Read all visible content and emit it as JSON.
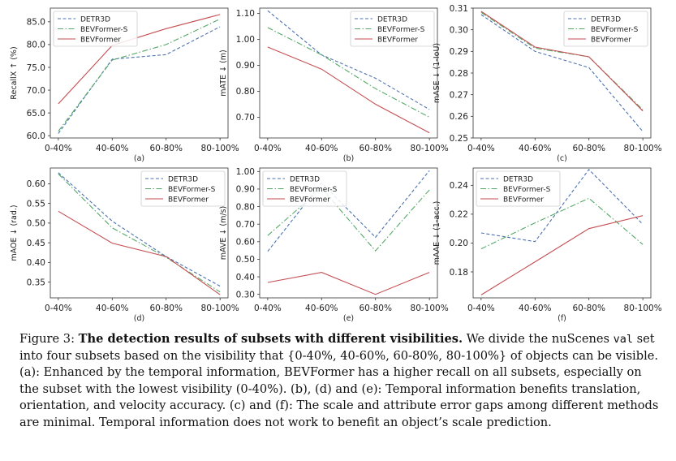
{
  "chart_data": [
    {
      "type": "line",
      "panel": "(a)",
      "ylabel": "RecallX ↑ (%)",
      "categories": [
        "0-40%",
        "40-60%",
        "60-80%",
        "80-100%"
      ],
      "ylim": [
        59.5,
        88
      ],
      "yticks": [
        60.0,
        65.0,
        70.0,
        75.0,
        80.0,
        85.0
      ],
      "yformat": 1,
      "legend": "top-left",
      "series": [
        {
          "name": "DETR3D",
          "color": "#4c72b0",
          "dash": "dashed",
          "values": [
            60.5,
            76.8,
            77.8,
            83.9
          ]
        },
        {
          "name": "BEVFormer-S",
          "color": "#55a868",
          "dash": "dashdot",
          "values": [
            61.0,
            76.6,
            80.0,
            85.6
          ]
        },
        {
          "name": "BEVFormer",
          "color": "#c44e52",
          "dash": "solid",
          "values": [
            67.0,
            79.8,
            83.5,
            86.6
          ]
        }
      ]
    },
    {
      "type": "line",
      "panel": "(b)",
      "ylabel": "mATE ↓ (m)",
      "categories": [
        "0-40%",
        "40-60%",
        "60-80%",
        "80-100%"
      ],
      "ylim": [
        0.62,
        1.12
      ],
      "yticks": [
        0.7,
        0.8,
        0.9,
        1.0,
        1.1
      ],
      "yformat": 2,
      "legend": "top-right",
      "series": [
        {
          "name": "DETR3D",
          "color": "#4c72b0",
          "dash": "dashed",
          "values": [
            1.11,
            0.94,
            0.85,
            0.73
          ]
        },
        {
          "name": "BEVFormer-S",
          "color": "#55a868",
          "dash": "dashdot",
          "values": [
            1.045,
            0.94,
            0.81,
            0.7
          ]
        },
        {
          "name": "BEVFormer",
          "color": "#c44e52",
          "dash": "solid",
          "values": [
            0.97,
            0.885,
            0.75,
            0.64
          ]
        }
      ]
    },
    {
      "type": "line",
      "panel": "(c)",
      "ylabel": "mASE ↓ (1-IoU)",
      "categories": [
        "0-40%",
        "40-60%",
        "60-80%",
        "80-100%"
      ],
      "ylim": [
        0.25,
        0.31
      ],
      "yticks": [
        0.25,
        0.26,
        0.27,
        0.28,
        0.29,
        0.3,
        0.31
      ],
      "yformat": 2,
      "legend": "top-right",
      "series": [
        {
          "name": "DETR3D",
          "color": "#4c72b0",
          "dash": "dashed",
          "values": [
            0.307,
            0.29,
            0.2825,
            0.253
          ]
        },
        {
          "name": "BEVFormer-S",
          "color": "#55a868",
          "dash": "dashdot",
          "values": [
            0.308,
            0.2915,
            0.2875,
            0.263
          ]
        },
        {
          "name": "BEVFormer",
          "color": "#c44e52",
          "dash": "solid",
          "values": [
            0.3085,
            0.292,
            0.2875,
            0.2625
          ]
        }
      ]
    },
    {
      "type": "line",
      "panel": "(d)",
      "ylabel": "mAOE ↓ (rad.)",
      "categories": [
        "0-40%",
        "40-60%",
        "60-80%",
        "80-100%"
      ],
      "ylim": [
        0.31,
        0.64
      ],
      "yticks": [
        0.35,
        0.4,
        0.45,
        0.5,
        0.55,
        0.6
      ],
      "yformat": 2,
      "legend": "top-right",
      "series": [
        {
          "name": "DETR3D",
          "color": "#4c72b0",
          "dash": "dashed",
          "values": [
            0.628,
            0.505,
            0.415,
            0.34
          ]
        },
        {
          "name": "BEVFormer-S",
          "color": "#55a868",
          "dash": "dashdot",
          "values": [
            0.625,
            0.488,
            0.413,
            0.325
          ]
        },
        {
          "name": "BEVFormer",
          "color": "#c44e52",
          "dash": "solid",
          "values": [
            0.53,
            0.449,
            0.415,
            0.318
          ]
        }
      ]
    },
    {
      "type": "line",
      "panel": "(e)",
      "ylabel": "mAVE ↓ (m/s)",
      "categories": [
        "0-40%",
        "40-60%",
        "60-80%",
        "80-100%"
      ],
      "ylim": [
        0.28,
        1.02
      ],
      "yticks": [
        0.3,
        0.4,
        0.5,
        0.6,
        0.7,
        0.8,
        0.9,
        1.0
      ],
      "yformat": 2,
      "legend": "top-left",
      "series": [
        {
          "name": "DETR3D",
          "color": "#4c72b0",
          "dash": "dashed",
          "values": [
            0.545,
            0.935,
            0.625,
            1.005
          ]
        },
        {
          "name": "BEVFormer-S",
          "color": "#55a868",
          "dash": "dashdot",
          "values": [
            0.635,
            0.905,
            0.548,
            0.895
          ]
        },
        {
          "name": "BEVFormer",
          "color": "#c44e52",
          "dash": "solid",
          "values": [
            0.368,
            0.425,
            0.3,
            0.425
          ]
        }
      ]
    },
    {
      "type": "line",
      "panel": "(f)",
      "ylabel": "mAAE ↓ (1-acc.)",
      "categories": [
        "0-40%",
        "40-60%",
        "60-80%",
        "80-100%"
      ],
      "ylim": [
        0.162,
        0.252
      ],
      "yticks": [
        0.18,
        0.2,
        0.22,
        0.24
      ],
      "yformat": 2,
      "legend": "top-left",
      "series": [
        {
          "name": "DETR3D",
          "color": "#4c72b0",
          "dash": "dashed",
          "values": [
            0.207,
            0.201,
            0.251,
            0.213
          ]
        },
        {
          "name": "BEVFormer-S",
          "color": "#55a868",
          "dash": "dashdot",
          "values": [
            0.196,
            0.214,
            0.231,
            0.199
          ]
        },
        {
          "name": "BEVFormer",
          "color": "#c44e52",
          "dash": "solid",
          "values": [
            0.164,
            0.187,
            0.21,
            0.219
          ]
        }
      ]
    }
  ],
  "caption": {
    "label": "Figure 3: ",
    "title": "The detection results of subsets with different visibilities.",
    "part1": " We divide the nuScenes ",
    "code": "val",
    "part2": " set into four subsets based on the visibility that {0-40%, 40-60%, 60-80%, 80-100%} of objects can be visible. (a): Enhanced by the temporal information, BEVFormer has a higher recall on all subsets, especially on the subset with the lowest visibility (0-40%). (b), (d) and (e): Temporal information benefits translation, orientation, and velocity accuracy. (c) and (f): The scale and attribute error gaps among different methods are minimal. Temporal information does not work to benefit an object’s scale prediction."
  }
}
